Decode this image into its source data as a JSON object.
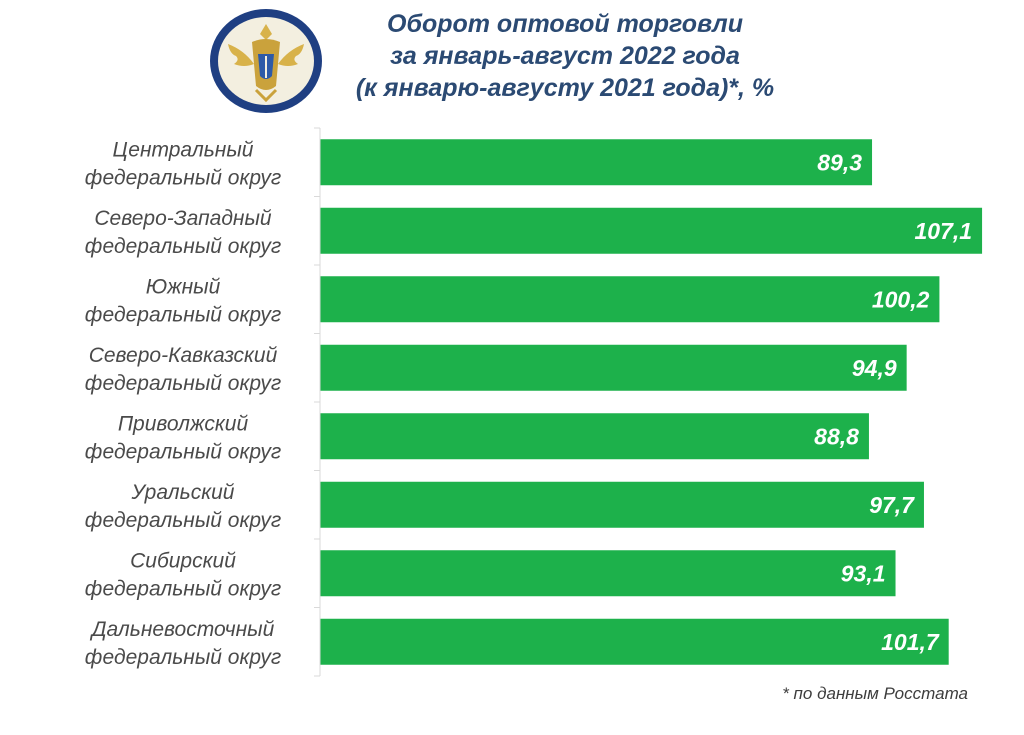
{
  "header": {
    "title_lines": [
      "Оборот оптовой торговли",
      "за январь-август 2022 года",
      "(к январю-августу 2021 года)*, %"
    ]
  },
  "footnote": "* по данным Росстата",
  "colors": {
    "bar": "#1db14b",
    "title": "#2b4a73",
    "emblem_ring": "#1f3f82",
    "emblem_gold": "#d8b24a"
  },
  "chart_data": {
    "type": "bar",
    "orientation": "horizontal",
    "categories": [
      [
        "Центральный",
        "федеральный округ"
      ],
      [
        "Северо-Западный",
        "федеральный округ"
      ],
      [
        "Южный",
        "федеральный округ"
      ],
      [
        "Северо-Кавказский",
        "федеральный округ"
      ],
      [
        "Приволжский",
        "федеральный округ"
      ],
      [
        "Уральский",
        "федеральный округ"
      ],
      [
        "Сибирский",
        "федеральный округ"
      ],
      [
        "Дальневосточный",
        "федеральный округ"
      ]
    ],
    "values": [
      89.3,
      107.1,
      100.2,
      94.9,
      88.8,
      97.7,
      93.1,
      101.7
    ],
    "value_labels": [
      "89,3",
      "107,1",
      "100,2",
      "94,9",
      "88,8",
      "97,7",
      "93,1",
      "101,7"
    ],
    "xlim": [
      0,
      110
    ],
    "grid": false,
    "legend": "none"
  }
}
